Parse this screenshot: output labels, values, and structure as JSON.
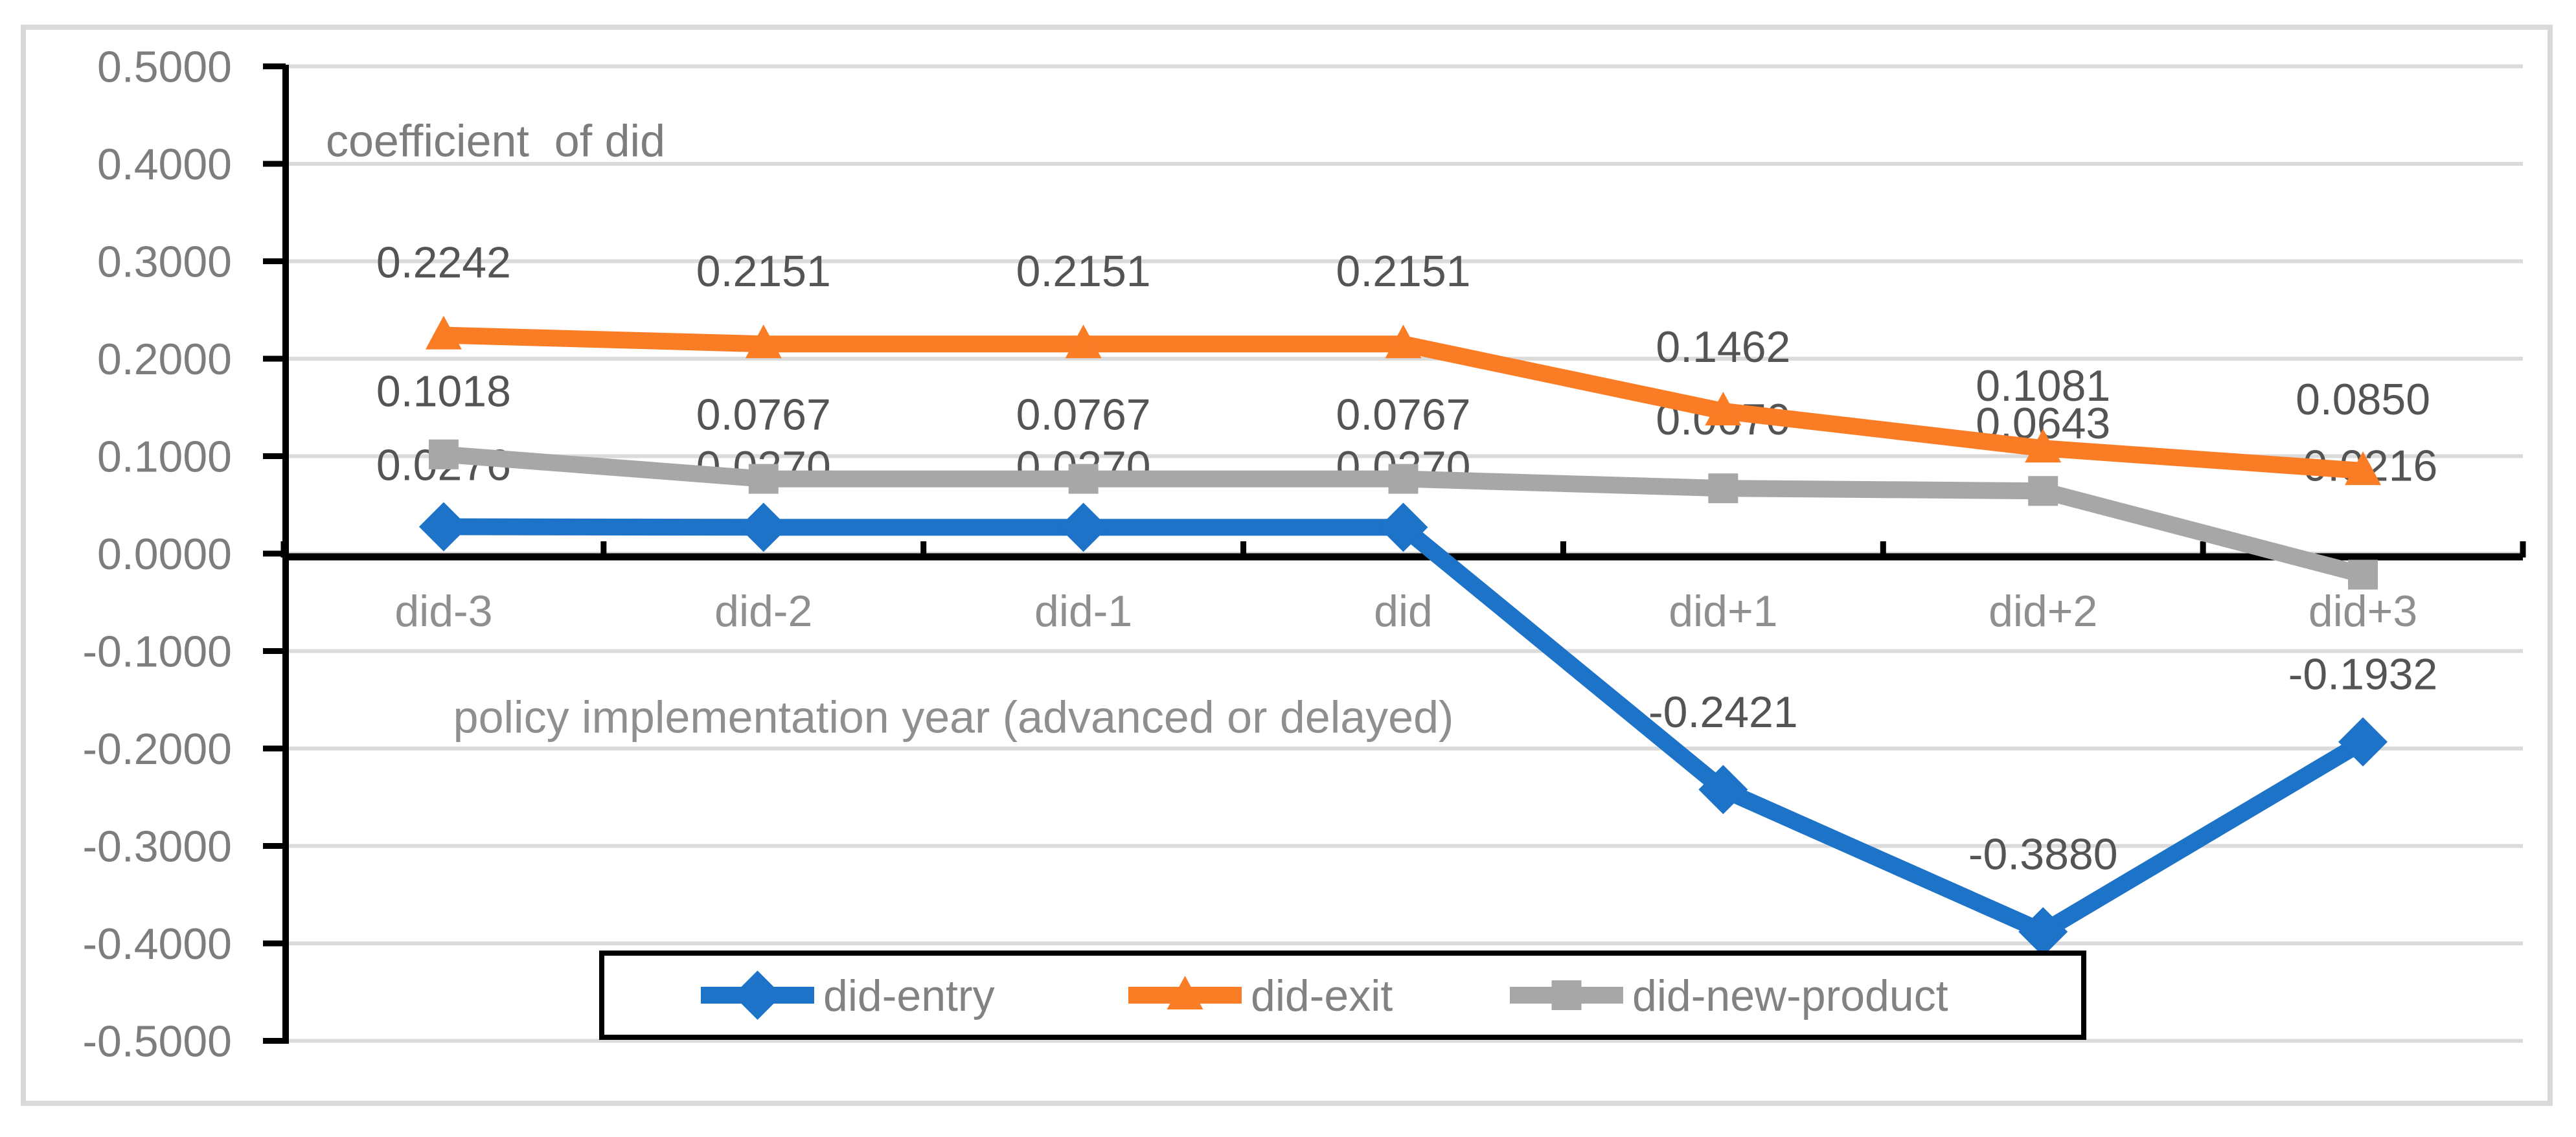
{
  "chart_data": {
    "type": "line",
    "title": "coefficient  of did",
    "x_axis_title": "policy implementation year (advanced or delayed)",
    "categories": [
      "did-3",
      "did-2",
      "did-1",
      "did",
      "did+1",
      "did+2",
      "did+3"
    ],
    "y_ticks": [
      "0.5000",
      "0.4000",
      "0.3000",
      "0.2000",
      "0.1000",
      "0.0000",
      "-0.1000",
      "-0.2000",
      "-0.3000",
      "-0.4000",
      "-0.5000"
    ],
    "ylim": [
      -0.5,
      0.5
    ],
    "y_tick_step": 0.1,
    "grid": true,
    "legend_position": "bottom-center",
    "series": [
      {
        "name": "did-entry",
        "marker": "diamond",
        "color": "#1D73C8",
        "values": [
          0.0276,
          0.027,
          0.027,
          0.027,
          -0.2421,
          -0.388,
          -0.1932
        ],
        "labels": [
          "0.0276",
          "0.0270",
          "0.0270",
          "0.0270",
          "-0.2421",
          "-0.3880",
          "-0.1932"
        ],
        "label_dy": [
          96,
          94,
          94,
          94,
          120,
          120,
          105
        ]
      },
      {
        "name": "did-exit",
        "marker": "triangle",
        "color": "#FA7D26",
        "values": [
          0.2242,
          0.2151,
          0.2151,
          0.2151,
          0.1462,
          0.1081,
          0.085
        ],
        "labels": [
          "0.2242",
          "0.2151",
          "0.2151",
          "0.2151",
          "0.1462",
          "0.1081",
          "0.0850"
        ],
        "label_dy": [
          113,
          113,
          113,
          113,
          100,
          97,
          111
        ]
      },
      {
        "name": "did-new-product",
        "marker": "square",
        "color": "#A7A7A7",
        "values": [
          0.1018,
          0.0767,
          0.0767,
          0.0767,
          0.067,
          0.0643,
          -0.0216
        ],
        "labels": [
          "0.1018",
          "0.0767",
          "0.0767",
          "0.0767",
          "0.0670",
          "0.0643",
          "-0.0216"
        ],
        "label_dy": [
          98,
          100,
          100,
          100,
          107,
          105,
          169
        ]
      }
    ],
    "colors": {
      "background": "#FFFFFF",
      "chart_border": "#D9D9D9",
      "gridline": "#DBDBDB",
      "axis_line": "#000000",
      "tick_label": "#7D7D7D",
      "category_label": "#8F8F8F",
      "data_label": "#545454",
      "title": "#7D7D7D",
      "axis_title": "#8F8F8F",
      "legend_text": "#828282",
      "legend_border": "#000000"
    }
  }
}
